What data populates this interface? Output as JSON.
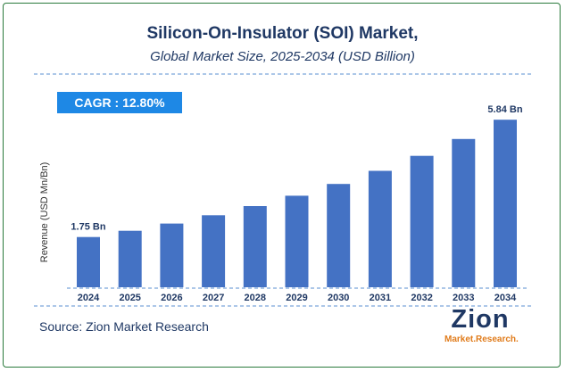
{
  "header": {
    "title": "Silicon-On-Insulator (SOI) Market,",
    "subtitle": "Global Market Size, 2025-2034 (USD Billion)"
  },
  "cagr": {
    "label": "CAGR :  12.80%"
  },
  "source": "Source: Zion Market Research",
  "logo": {
    "name": "Zion",
    "tagline": "Market.Research."
  },
  "colors": {
    "bar": "#4472c4",
    "title": "#1f3864",
    "accent": "#1e88e5",
    "frame": "#2a7a3c",
    "logo_orange": "#e07b1a"
  },
  "chart_data": {
    "type": "bar",
    "title": "Silicon-On-Insulator (SOI) Market, Global Market Size, 2025-2034 (USD Billion)",
    "xlabel": "",
    "ylabel": "Revenue (USD Mn/Bn)",
    "categories": [
      "2024",
      "2025",
      "2026",
      "2027",
      "2028",
      "2029",
      "2030",
      "2031",
      "2032",
      "2033",
      "2034"
    ],
    "values": [
      1.75,
      1.97,
      2.22,
      2.51,
      2.83,
      3.19,
      3.6,
      4.06,
      4.58,
      5.17,
      5.84
    ],
    "data_labels": [
      {
        "index": 0,
        "text": "1.75 Bn"
      },
      {
        "index": 10,
        "text": "5.84 Bn"
      }
    ],
    "ylim": [
      0,
      6.5
    ],
    "grid": false,
    "legend": "none"
  }
}
